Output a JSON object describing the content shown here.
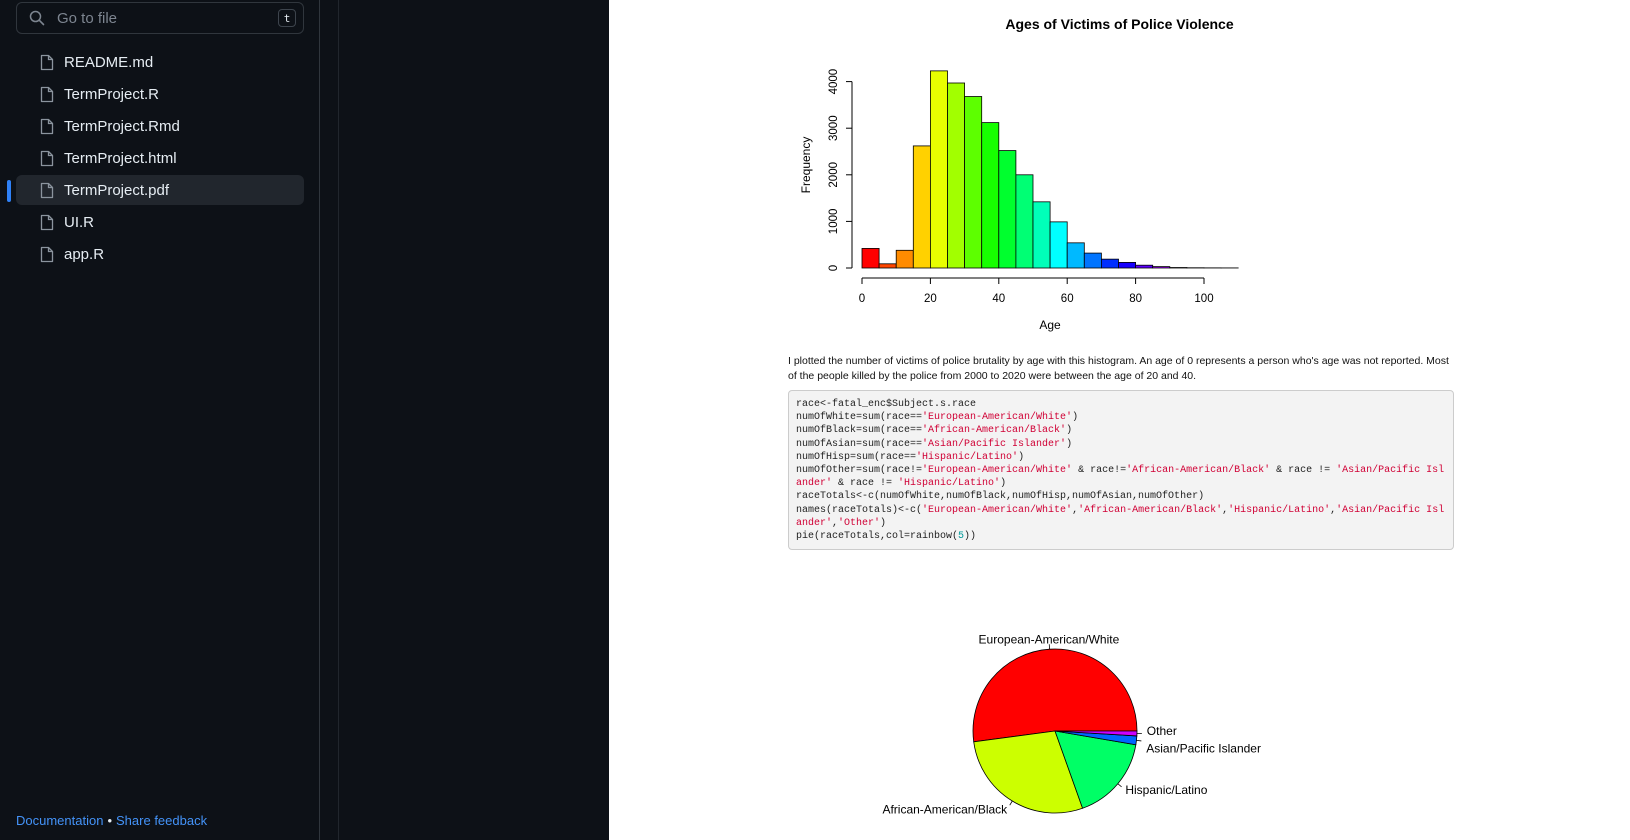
{
  "sidebar": {
    "search_placeholder": "Go to file",
    "search_shortcut": "t",
    "files": [
      {
        "name": "README.md",
        "active": false
      },
      {
        "name": "TermProject.R",
        "active": false
      },
      {
        "name": "TermProject.Rmd",
        "active": false
      },
      {
        "name": "TermProject.html",
        "active": false
      },
      {
        "name": "TermProject.pdf",
        "active": true
      },
      {
        "name": "UI.R",
        "active": false
      },
      {
        "name": "app.R",
        "active": false
      }
    ],
    "footer": {
      "documentation": "Documentation",
      "separator": "•",
      "feedback": "Share feedback"
    }
  },
  "colors": {
    "accent": "#2f81f7",
    "link": "#4493f8",
    "background": "#0d1117"
  },
  "document": {
    "paragraph": "I plotted the number of victims of police brutality by age with this histogram. An age of 0 represents a person who's age was not reported. Most of the people killed by the police from 2000 to 2020 were between the age of 20 and 40.",
    "code_lines": [
      [
        {
          "t": "race<-fatal_enc$Subject.s.race"
        }
      ],
      [
        {
          "t": "numOfWhite=sum(race=="
        },
        {
          "t": "'European-American/White'",
          "c": "str"
        },
        {
          "t": ")"
        }
      ],
      [
        {
          "t": "numOfBlack=sum(race=="
        },
        {
          "t": "'African-American/Black'",
          "c": "str"
        },
        {
          "t": ")"
        }
      ],
      [
        {
          "t": "numOfAsian=sum(race=="
        },
        {
          "t": "'Asian/Pacific Islander'",
          "c": "str"
        },
        {
          "t": ")"
        }
      ],
      [
        {
          "t": "numOfHisp=sum(race=="
        },
        {
          "t": "'Hispanic/Latino'",
          "c": "str"
        },
        {
          "t": ")"
        }
      ],
      [
        {
          "t": "numOfOther=sum(race!="
        },
        {
          "t": "'European-American/White'",
          "c": "str"
        },
        {
          "t": " & race!="
        },
        {
          "t": "'African-American/Black'",
          "c": "str"
        },
        {
          "t": " & race != "
        },
        {
          "t": "'Asian/Pacific Islander'",
          "c": "str"
        },
        {
          "t": " & race != "
        },
        {
          "t": "'Hispanic/Latino'",
          "c": "str"
        },
        {
          "t": ")"
        }
      ],
      [
        {
          "t": "raceTotals<-c(numOfWhite,numOfBlack,numOfHisp,numOfAsian,numOfOther)"
        }
      ],
      [
        {
          "t": "names(raceTotals)<-c("
        },
        {
          "t": "'European-American/White'",
          "c": "str"
        },
        {
          "t": ","
        },
        {
          "t": "'African-American/Black'",
          "c": "str"
        },
        {
          "t": ","
        },
        {
          "t": "'Hispanic/Latino'",
          "c": "str"
        },
        {
          "t": ","
        },
        {
          "t": "'Asian/Pacific Islander'",
          "c": "str"
        },
        {
          "t": ","
        },
        {
          "t": "'Other'",
          "c": "str"
        },
        {
          "t": ")"
        }
      ],
      [
        {
          "t": "pie(raceTotals,col=rainbow("
        },
        {
          "t": "5",
          "c": "num"
        },
        {
          "t": "))"
        }
      ]
    ]
  },
  "chart_data": [
    {
      "type": "bar",
      "title": "Ages of Victims of Police Violence",
      "xlabel": "Age",
      "ylabel": "Frequency",
      "bin_width": 5,
      "x_start": 0,
      "xlim": [
        0,
        110
      ],
      "ylim": [
        0,
        4200
      ],
      "xticks": [
        0,
        20,
        40,
        60,
        80,
        100
      ],
      "yticks": [
        0,
        1000,
        2000,
        3000,
        4000
      ],
      "values": [
        420,
        90,
        380,
        2620,
        4230,
        3970,
        3680,
        3120,
        2520,
        2000,
        1420,
        990,
        540,
        320,
        190,
        120,
        60,
        30,
        10,
        5,
        3,
        2
      ],
      "colors": [
        "#FF0000",
        "#FF4600",
        "#FF8B00",
        "#FFD100",
        "#E8FF00",
        "#A2FF00",
        "#5DFF00",
        "#17FF00",
        "#00FF2E",
        "#00FF74",
        "#00FFB9",
        "#00FFFF",
        "#00B9FF",
        "#0074FF",
        "#002EFF",
        "#1700FF",
        "#5D00FF",
        "#A200FF",
        "#E800FF",
        "#FF00D1",
        "#FF008B",
        "#FF0046"
      ],
      "grid": false
    },
    {
      "type": "pie",
      "categories": [
        "European-American/White",
        "African-American/Black",
        "Hispanic/Latino",
        "Asian/Pacific Islander",
        "Other"
      ],
      "values": [
        13600,
        7400,
        4400,
        450,
        250
      ],
      "colors": [
        "#FF0000",
        "#CCFF00",
        "#00FF66",
        "#0066FF",
        "#CC00FF"
      ]
    }
  ]
}
